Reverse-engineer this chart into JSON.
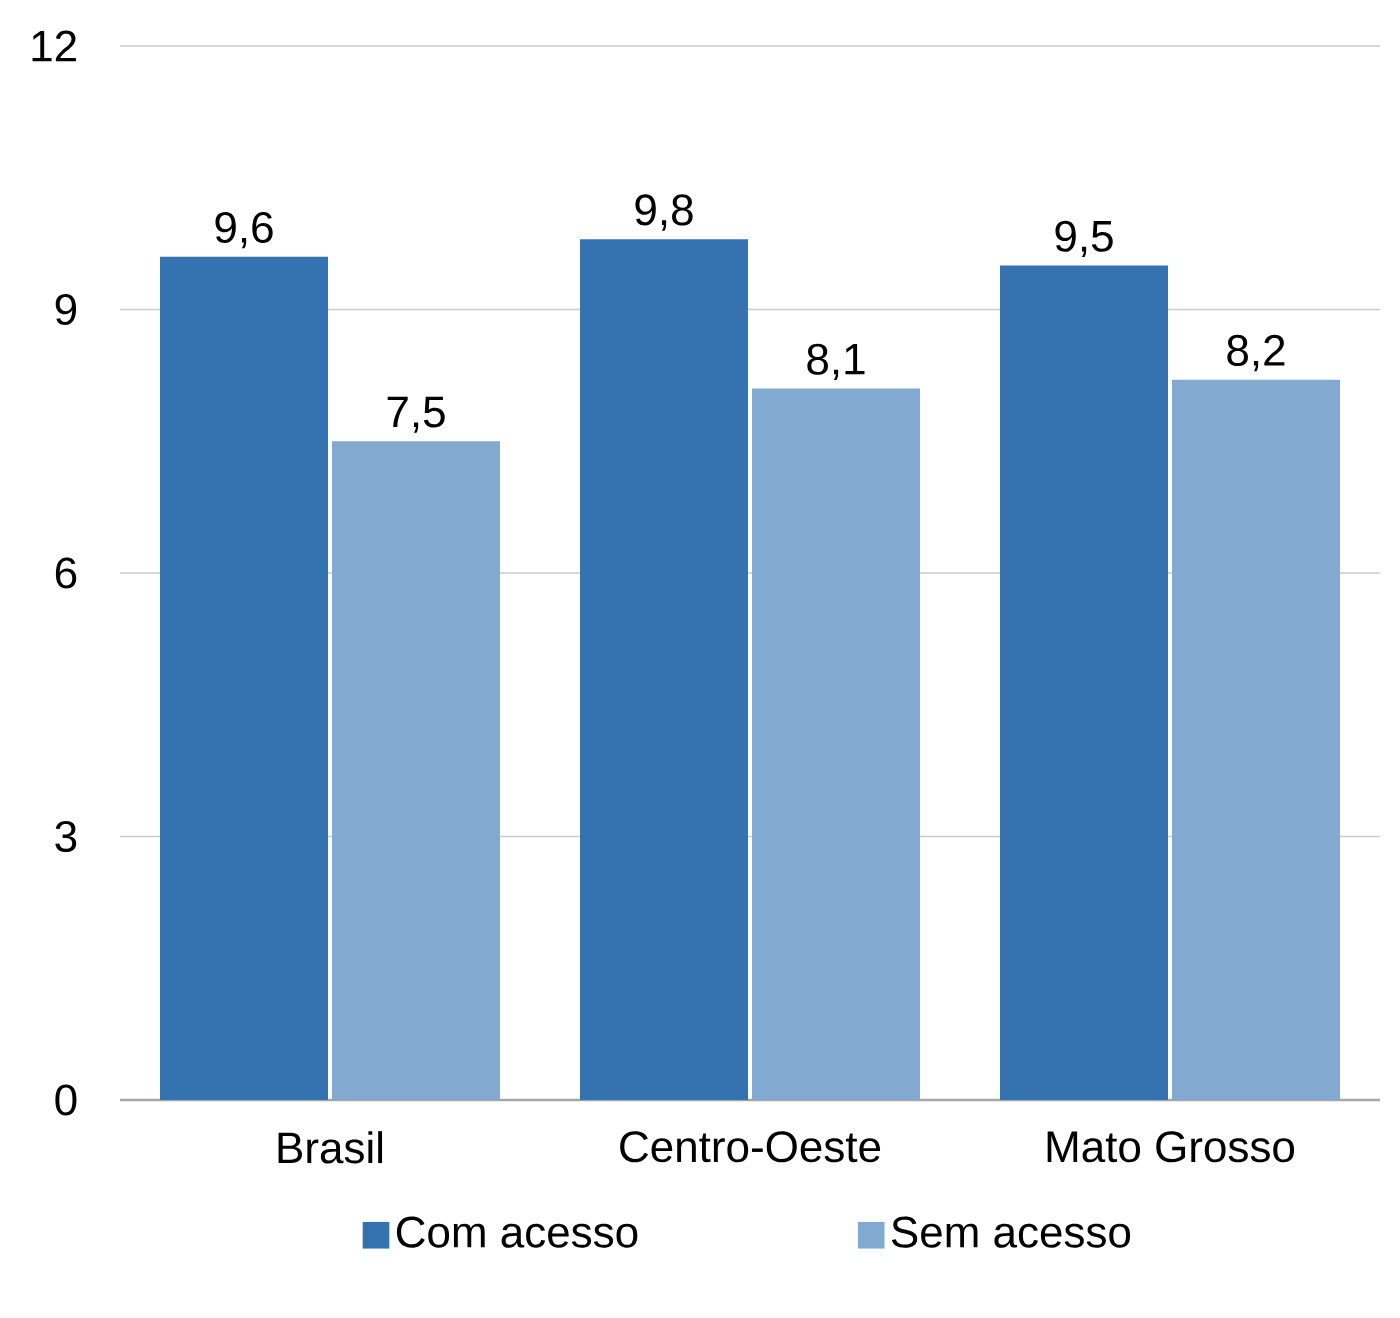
{
  "chart_data": {
    "type": "bar",
    "categories": [
      "Brasil",
      "Centro-Oeste",
      "Mato Grosso"
    ],
    "series": [
      {
        "name": "Com acesso",
        "color": "#3572b0",
        "values": [
          9.6,
          9.8,
          9.5
        ]
      },
      {
        "name": "Sem acesso",
        "color": "#82a9d0",
        "values": [
          7.5,
          8.1,
          8.2
        ]
      }
    ],
    "ylim": [
      0,
      12
    ],
    "yticks": [
      0,
      3,
      6,
      9,
      12
    ],
    "grid": "y",
    "legend": "bottom",
    "value_labels": [
      [
        "9,6",
        "9,8",
        "9,5"
      ],
      [
        "7,5",
        "8,1",
        "8,2"
      ]
    ]
  }
}
